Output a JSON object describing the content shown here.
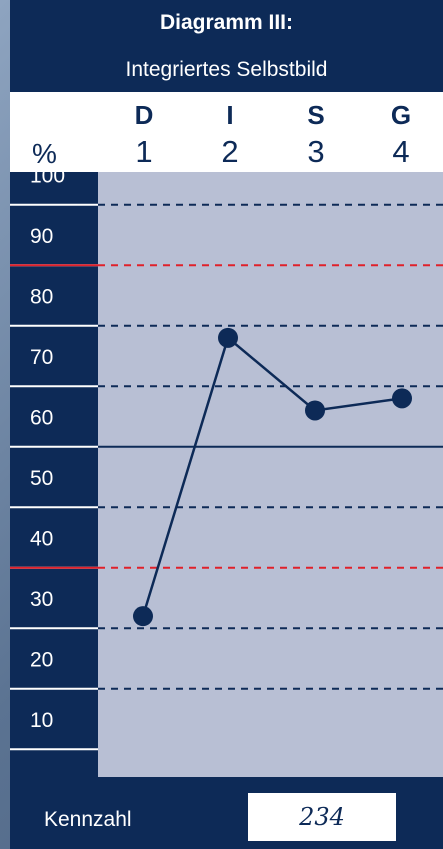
{
  "header": {
    "title": "Diagramm III:",
    "subtitle": "Integriertes Selbstbild",
    "percent_label": "%"
  },
  "chart_data": {
    "type": "line",
    "title": "Diagramm III:",
    "subtitle": "Integriertes Selbstbild",
    "categories": [
      "D",
      "I",
      "S",
      "G"
    ],
    "category_numbers": [
      "1",
      "2",
      "3",
      "4"
    ],
    "ylabel": "%",
    "y_ticks": [
      100,
      90,
      80,
      70,
      60,
      50,
      40,
      30,
      20,
      10
    ],
    "ylim": [
      0,
      105
    ],
    "values": [
      27,
      73,
      61,
      63
    ],
    "dashed_gridlines": [
      95,
      75,
      65,
      45,
      25,
      15
    ],
    "red_dashed_lines": [
      85,
      35
    ],
    "solid_midline": 55,
    "colors": {
      "line": "#0d2a57",
      "plot_bg": "#b8bfd4",
      "axis_bg": "#0d2a57",
      "red_line": "#e0202a"
    }
  },
  "footer": {
    "kennzahl_label": "Kennzahl",
    "kennzahl_value": "234"
  }
}
